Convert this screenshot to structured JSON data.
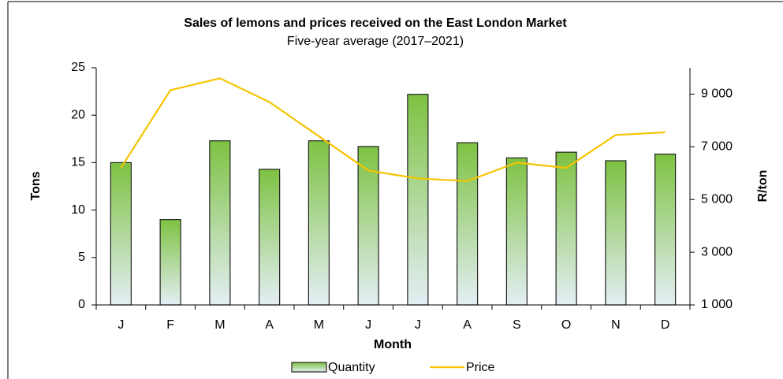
{
  "chart_data": {
    "type": "bar",
    "title": "Sales of lemons and prices received on the East London Market",
    "subtitle": "Five-year average (2017–2021)",
    "x_label": "Month",
    "y_label": "Tons",
    "y2_label": "R/ton",
    "categories": [
      "J",
      "F",
      "M",
      "A",
      "M",
      "J",
      "J",
      "A",
      "S",
      "O",
      "N",
      "D"
    ],
    "series": [
      {
        "name": "Quantity",
        "type": "bar",
        "color": "#7dc242",
        "values": [
          15,
          9,
          17.3,
          14.3,
          17.3,
          16.7,
          22.2,
          17.1,
          15.5,
          16.1,
          15.2,
          15.9
        ]
      },
      {
        "name": "Price",
        "type": "line",
        "axis": "y2",
        "color": "#f5c400",
        "values": [
          6200,
          9150,
          9600,
          8700,
          7400,
          6100,
          5800,
          5700,
          6400,
          6200,
          7450,
          7550
        ]
      }
    ],
    "ylim": [
      0,
      25
    ],
    "yticks": [
      0,
      5,
      10,
      15,
      20,
      25
    ],
    "y2lim": [
      1000,
      10000
    ],
    "y2ticks": [
      {
        "value": 1000,
        "label": "1 000"
      },
      {
        "value": 3000,
        "label": "3 000"
      },
      {
        "value": 5000,
        "label": "5 000"
      },
      {
        "value": 7000,
        "label": "7 000"
      },
      {
        "value": 9000,
        "label": "9 000"
      }
    ],
    "legend": "bottom"
  }
}
